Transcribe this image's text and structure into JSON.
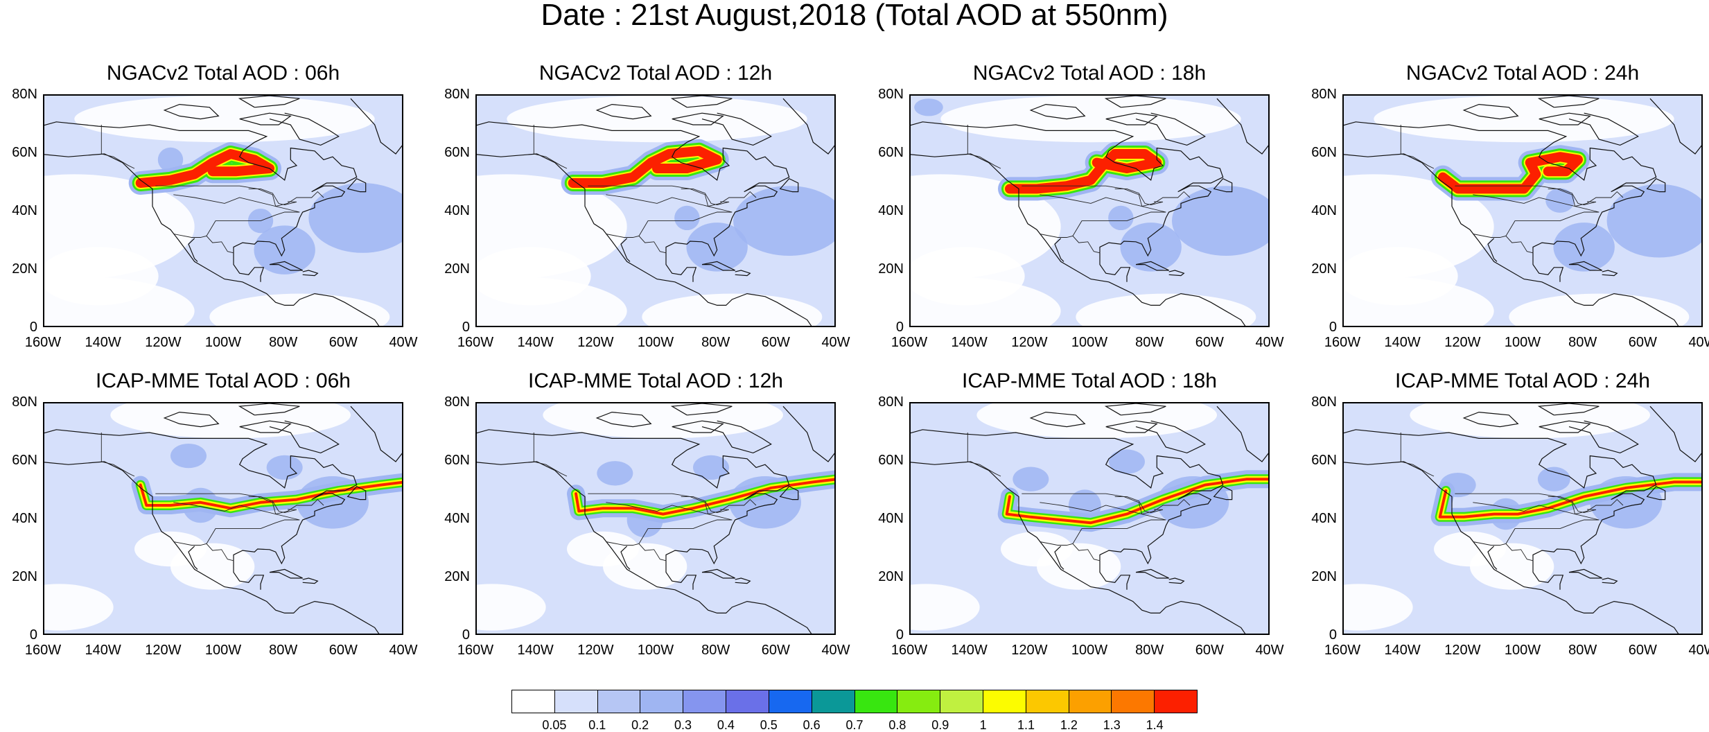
{
  "title": "Date : 21st August,2018 (Total AOD at 550nm)",
  "panels": [
    {
      "title": "NGACv2 Total AOD : 06h",
      "model": "NGACv2",
      "hour": "06h"
    },
    {
      "title": "NGACv2 Total AOD : 12h",
      "model": "NGACv2",
      "hour": "12h"
    },
    {
      "title": "NGACv2 Total AOD : 18h",
      "model": "NGACv2",
      "hour": "18h"
    },
    {
      "title": "NGACv2 Total AOD : 24h",
      "model": "NGACv2",
      "hour": "24h"
    },
    {
      "title": "ICAP-MME Total AOD : 06h",
      "model": "ICAP-MME",
      "hour": "06h"
    },
    {
      "title": "ICAP-MME Total AOD : 12h",
      "model": "ICAP-MME",
      "hour": "12h"
    },
    {
      "title": "ICAP-MME Total AOD : 18h",
      "model": "ICAP-MME",
      "hour": "18h"
    },
    {
      "title": "ICAP-MME Total AOD : 24h",
      "model": "ICAP-MME",
      "hour": "24h"
    }
  ],
  "lat_ticks": [
    "80N",
    "60N",
    "40N",
    "20N",
    "0"
  ],
  "lon_ticks": [
    "160W",
    "140W",
    "120W",
    "100W",
    "80W",
    "60W",
    "40W"
  ],
  "colorbar": {
    "labels": [
      "0.05",
      "0.1",
      "0.2",
      "0.3",
      "0.4",
      "0.5",
      "0.6",
      "0.7",
      "0.8",
      "0.9",
      "1",
      "1.1",
      "1.2",
      "1.3",
      "1.4"
    ],
    "colors": [
      "#ffffff",
      "#d6e0fb",
      "#b6c6f4",
      "#9fb5f2",
      "#8595ef",
      "#6a70e8",
      "#1768f0",
      "#0b9898",
      "#38e610",
      "#86ec10",
      "#c0f040",
      "#fcfc00",
      "#fcc800",
      "#fca000",
      "#fc7800",
      "#fc2000"
    ]
  },
  "chart_data": {
    "type": "heatmap",
    "title": "Date : 21st August,2018 (Total AOD at 550nm)",
    "variable": "Total AOD at 550nm",
    "domain": {
      "lon": [
        -160,
        -40
      ],
      "lat": [
        0,
        80
      ]
    },
    "panels": [
      "NGACv2 Total AOD : 06h",
      "NGACv2 Total AOD : 12h",
      "NGACv2 Total AOD : 18h",
      "NGACv2 Total AOD : 24h",
      "ICAP-MME Total AOD : 06h",
      "ICAP-MME Total AOD : 12h",
      "ICAP-MME Total AOD : 18h",
      "ICAP-MME Total AOD : 24h"
    ],
    "levels": [
      0.05,
      0.1,
      0.2,
      0.3,
      0.4,
      0.5,
      0.6,
      0.7,
      0.8,
      0.9,
      1,
      1.1,
      1.2,
      1.3,
      1.4
    ]
  }
}
